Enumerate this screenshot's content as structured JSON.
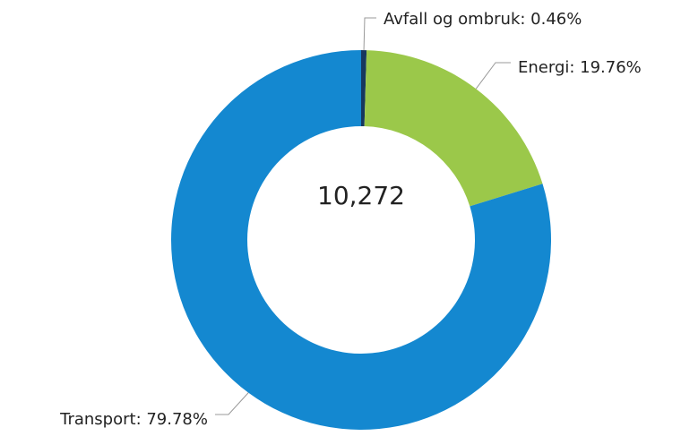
{
  "chart_data": {
    "type": "donut",
    "labels": [
      "Avfall og ombruk: 0.46%",
      "Energi: 19.76%",
      "Transport: 79.78%"
    ],
    "values": [
      0.46,
      19.76,
      79.78
    ],
    "colors": [
      "#17375e",
      "#9bc84a",
      "#1488d0"
    ],
    "center_label": "10,272"
  }
}
